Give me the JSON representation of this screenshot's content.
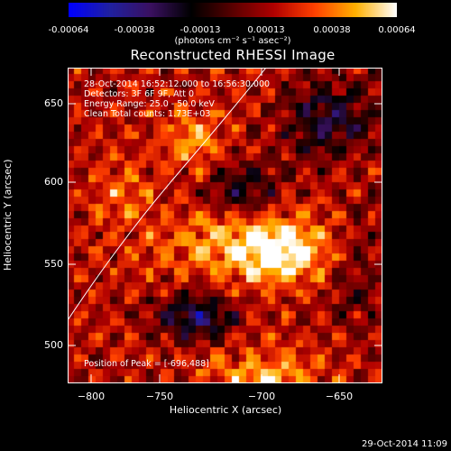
{
  "colorbar": {
    "ticks": [
      "-0.00064",
      "-0.00038",
      "-0.00013",
      "0.00013",
      "0.00038",
      "0.00064"
    ],
    "unit": "(photons cm⁻² s⁻¹ asec⁻²)",
    "colormap": [
      "#0000ff",
      "#2020a0",
      "#3a1060",
      "#000000",
      "#5a0000",
      "#b00000",
      "#ff4000",
      "#ffb000",
      "#ffffff"
    ]
  },
  "title": "Reconstructed RHESSI Image",
  "annotations": {
    "time": "28-Oct-2014 16:52:12.000 to 16:56:30.000",
    "detectors": "Detectors: 3F 6F 9F, Att 0",
    "energy": "Energy Range: 25.0 - 50.0 keV",
    "clean": "Clean     Total counts: 1.73E+03",
    "peak": "Position of Peak = [-696,488]"
  },
  "axes": {
    "xlabel": "Heliocentric X (arcsec)",
    "ylabel": "Heliocentric Y (arcsec)",
    "xticks": [
      "−800",
      "−750",
      "−700",
      "−650"
    ],
    "yticks": [
      "650",
      "600",
      "550",
      "500"
    ]
  },
  "footer": "29-Oct-2014 11:09"
}
